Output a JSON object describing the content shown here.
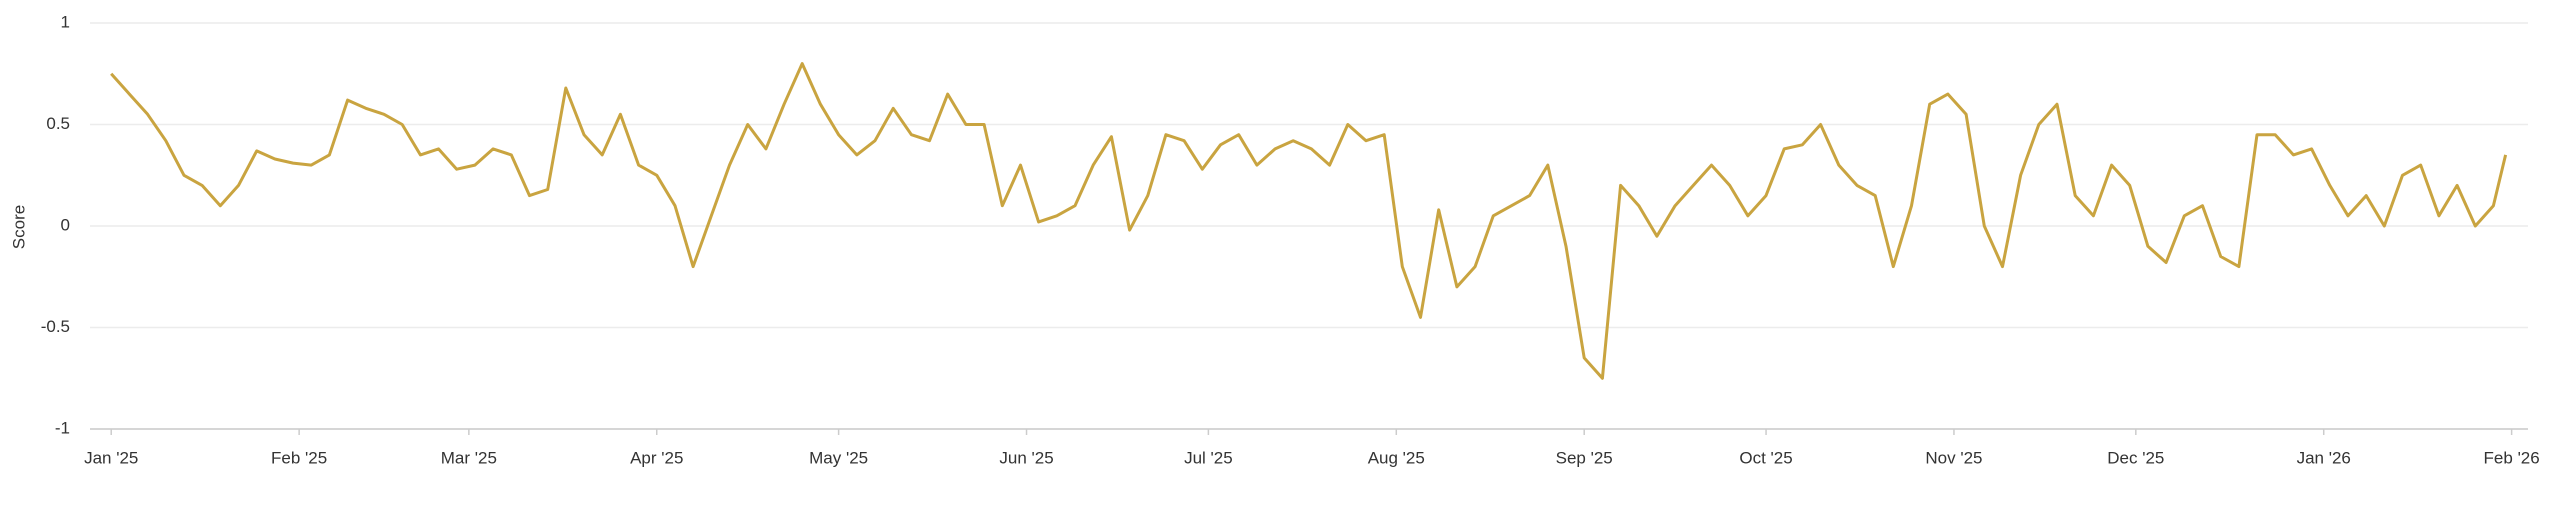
{
  "chart_data": {
    "type": "line",
    "y_label": "Score",
    "xticks": [
      {
        "value": 0,
        "label": "Jan '25"
      },
      {
        "value": 31,
        "label": "Feb '25"
      },
      {
        "value": 59,
        "label": "Mar '25"
      },
      {
        "value": 90,
        "label": "Apr '25"
      },
      {
        "value": 120,
        "label": "May '25"
      },
      {
        "value": 151,
        "label": "Jun '25"
      },
      {
        "value": 181,
        "label": "Jul '25"
      },
      {
        "value": 212,
        "label": "Aug '25"
      },
      {
        "value": 243,
        "label": "Sep '25"
      },
      {
        "value": 273,
        "label": "Oct '25"
      },
      {
        "value": 304,
        "label": "Nov '25"
      },
      {
        "value": 334,
        "label": "Dec '25"
      },
      {
        "value": 365,
        "label": "Jan '26"
      },
      {
        "value": 396,
        "label": "Feb '26"
      }
    ],
    "xlim": [
      -3.5,
      398.7
    ],
    "ylim": [
      -1,
      1
    ],
    "yticks": [
      -1,
      -0.5,
      0,
      0.5,
      1
    ],
    "grid": true,
    "series": [
      {
        "color": "#c9a440",
        "x": [
          0,
          3,
          6,
          9,
          12,
          15,
          18,
          21,
          24,
          27,
          30,
          33,
          36,
          39,
          42,
          45,
          48,
          51,
          54,
          57,
          60,
          63,
          66,
          69,
          72,
          75,
          78,
          81,
          84,
          87,
          90,
          93,
          96,
          99,
          102,
          105,
          108,
          111,
          114,
          117,
          120,
          123,
          126,
          129,
          132,
          135,
          138,
          141,
          144,
          147,
          150,
          153,
          156,
          159,
          162,
          165,
          168,
          171,
          174,
          177,
          180,
          183,
          186,
          189,
          192,
          195,
          198,
          201,
          204,
          207,
          210,
          213,
          216,
          219,
          222,
          225,
          228,
          231,
          234,
          237,
          240,
          243,
          246,
          249,
          252,
          255,
          258,
          261,
          264,
          267,
          270,
          273,
          276,
          279,
          282,
          285,
          288,
          291,
          294,
          297,
          300,
          303,
          306,
          309,
          312,
          315,
          318,
          321,
          324,
          327,
          330,
          333,
          336,
          339,
          342,
          345,
          348,
          351,
          354,
          357,
          360,
          363,
          366,
          369,
          372,
          375,
          378,
          381,
          384,
          387,
          390,
          393,
          395
        ],
        "values": [
          0.75,
          0.65,
          0.55,
          0.42,
          0.25,
          0.2,
          0.1,
          0.2,
          0.37,
          0.33,
          0.31,
          0.3,
          0.35,
          0.62,
          0.58,
          0.55,
          0.5,
          0.35,
          0.38,
          0.28,
          0.3,
          0.38,
          0.35,
          0.15,
          0.18,
          0.68,
          0.45,
          0.35,
          0.55,
          0.3,
          0.25,
          0.1,
          -0.2,
          0.05,
          0.3,
          0.5,
          0.38,
          0.6,
          0.8,
          0.6,
          0.45,
          0.35,
          0.42,
          0.58,
          0.45,
          0.42,
          0.65,
          0.5,
          0.5,
          0.1,
          0.3,
          0.02,
          0.05,
          0.1,
          0.3,
          0.44,
          -0.02,
          0.15,
          0.45,
          0.42,
          0.28,
          0.4,
          0.45,
          0.3,
          0.38,
          0.42,
          0.38,
          0.3,
          0.5,
          0.42,
          0.45,
          -0.2,
          -0.45,
          0.08,
          -0.3,
          -0.2,
          0.05,
          0.1,
          0.15,
          0.3,
          -0.1,
          -0.65,
          -0.75,
          0.2,
          0.1,
          -0.05,
          0.1,
          0.2,
          0.3,
          0.2,
          0.05,
          0.15,
          0.38,
          0.4,
          0.5,
          0.3,
          0.2,
          0.15,
          -0.2,
          0.1,
          0.6,
          0.65,
          0.55,
          0.0,
          -0.2,
          0.25,
          0.5,
          0.6,
          0.15,
          0.05,
          0.3,
          0.2,
          -0.1,
          -0.18,
          0.05,
          0.1,
          -0.15,
          -0.2,
          0.45,
          0.45,
          0.35,
          0.38,
          0.2,
          0.05,
          0.15,
          0.0,
          0.25,
          0.3,
          0.05,
          0.2,
          0.0,
          0.1,
          0.35
        ]
      }
    ]
  }
}
